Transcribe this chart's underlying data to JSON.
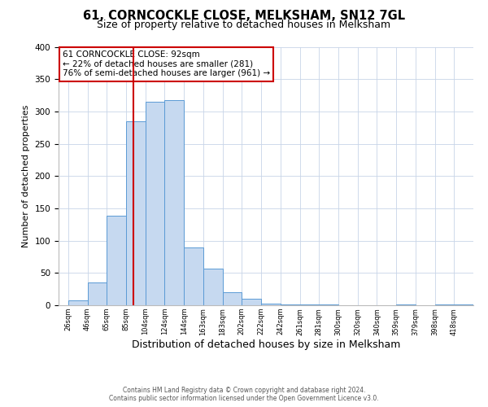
{
  "title": "61, CORNCOCKLE CLOSE, MELKSHAM, SN12 7GL",
  "subtitle": "Size of property relative to detached houses in Melksham",
  "xlabel": "Distribution of detached houses by size in Melksham",
  "ylabel": "Number of detached properties",
  "bin_labels": [
    "26sqm",
    "46sqm",
    "65sqm",
    "85sqm",
    "104sqm",
    "124sqm",
    "144sqm",
    "163sqm",
    "183sqm",
    "202sqm",
    "222sqm",
    "242sqm",
    "261sqm",
    "281sqm",
    "300sqm",
    "320sqm",
    "340sqm",
    "359sqm",
    "379sqm",
    "398sqm",
    "418sqm"
  ],
  "bar_heights": [
    7,
    35,
    138,
    285,
    315,
    318,
    90,
    57,
    20,
    10,
    3,
    1,
    1,
    1,
    0,
    0,
    0,
    1,
    0,
    1,
    1
  ],
  "bar_color": "#c6d9f0",
  "bar_edge_color": "#5b9bd5",
  "vline_color": "#cc0000",
  "ylim": [
    0,
    400
  ],
  "yticks": [
    0,
    50,
    100,
    150,
    200,
    250,
    300,
    350,
    400
  ],
  "annotation_address": "61 CORNCOCKLE CLOSE: 92sqm",
  "annotation_line1": "← 22% of detached houses are smaller (281)",
  "annotation_line2": "76% of semi-detached houses are larger (961) →",
  "footer1": "Contains HM Land Registry data © Crown copyright and database right 2024.",
  "footer2": "Contains public sector information licensed under the Open Government Licence v3.0.",
  "bg_color": "#ffffff",
  "grid_color": "#c8d4e8",
  "title_fontsize": 10.5,
  "subtitle_fontsize": 9,
  "xlabel_fontsize": 9,
  "ylabel_fontsize": 8,
  "annotation_fontsize": 7.5,
  "footer_fontsize": 5.5,
  "bin_values": [
    26,
    46,
    65,
    85,
    104,
    124,
    144,
    163,
    183,
    202,
    222,
    242,
    261,
    281,
    300,
    320,
    340,
    359,
    379,
    398,
    418
  ],
  "property_sqm": 92
}
